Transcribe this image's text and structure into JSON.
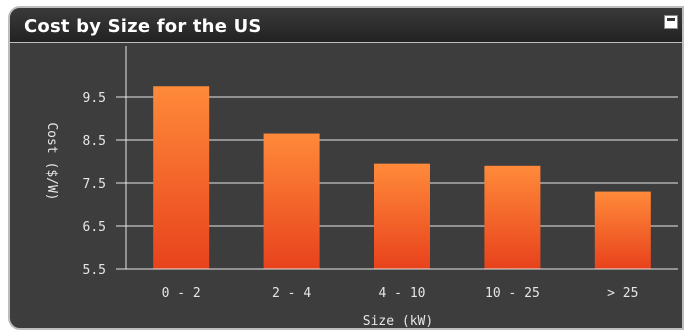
{
  "widget": {
    "title": "Cost by Size for the US"
  },
  "colors": {
    "panel": "#3d3d3d",
    "bar_top": "#ff8a3a",
    "bar_bottom": "#e8421c",
    "grid": "#e8e8e8",
    "text": "#e6e6e6"
  },
  "chart_data": {
    "type": "bar",
    "categories": [
      "0 - 2",
      "2 - 4",
      "4 - 10",
      "10 - 25",
      "> 25"
    ],
    "values": [
      9.75,
      8.65,
      7.95,
      7.9,
      7.3
    ],
    "xlabel": "Size (kW)",
    "ylabel": "Cost ($/W)",
    "ylim": [
      5.5,
      10.5
    ],
    "yticks": [
      5.5,
      6.5,
      7.5,
      8.5,
      9.5
    ],
    "grid": true
  }
}
